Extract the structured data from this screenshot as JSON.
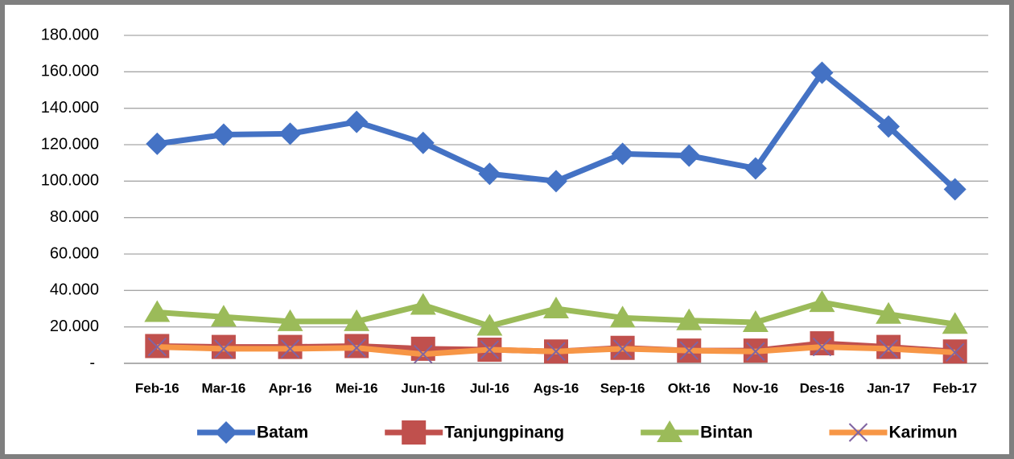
{
  "chart_data": {
    "type": "line",
    "categories": [
      "Feb-16",
      "Mar-16",
      "Apr-16",
      "Mei-16",
      "Jun-16",
      "Jul-16",
      "Ags-16",
      "Sep-16",
      "Okt-16",
      "Nov-16",
      "Des-16",
      "Jan-17",
      "Feb-17"
    ],
    "series": [
      {
        "name": "Batam",
        "color": "#4472c4",
        "marker": "diamond",
        "marker_color": "#4472c4",
        "values": [
          120500,
          125500,
          126000,
          132500,
          121000,
          104000,
          100000,
          115000,
          114000,
          107000,
          159500,
          130000,
          95500
        ]
      },
      {
        "name": "Tanjungpinang",
        "color": "#c0504d",
        "marker": "square",
        "marker_color": "#c0504d",
        "values": [
          9500,
          9000,
          9000,
          9500,
          8000,
          7500,
          6500,
          8500,
          7000,
          7000,
          11000,
          9000,
          6500
        ]
      },
      {
        "name": "Bintan",
        "color": "#9bbb59",
        "marker": "triangle",
        "marker_color": "#9bbb59",
        "values": [
          28000,
          25500,
          23000,
          23000,
          32000,
          20500,
          30000,
          25000,
          23500,
          22500,
          33500,
          27000,
          21500
        ]
      },
      {
        "name": "Karimun",
        "color": "#f79646",
        "marker": "x",
        "marker_color": "#8064a2",
        "values": [
          9000,
          8000,
          8000,
          8500,
          5000,
          7500,
          6500,
          8000,
          7000,
          6500,
          9000,
          8000,
          6000
        ]
      }
    ],
    "ylim": [
      0,
      180000
    ],
    "yticks": [
      {
        "value": 0,
        "label": "-"
      },
      {
        "value": 20000,
        "label": "20.000"
      },
      {
        "value": 40000,
        "label": "40.000"
      },
      {
        "value": 60000,
        "label": "60.000"
      },
      {
        "value": 80000,
        "label": "80.000"
      },
      {
        "value": 100000,
        "label": "100.000"
      },
      {
        "value": 120000,
        "label": "120.000"
      },
      {
        "value": 140000,
        "label": "140.000"
      },
      {
        "value": 160000,
        "label": "160.000"
      },
      {
        "value": 180000,
        "label": "180.000"
      }
    ],
    "grid": true,
    "legend": "bottom"
  }
}
